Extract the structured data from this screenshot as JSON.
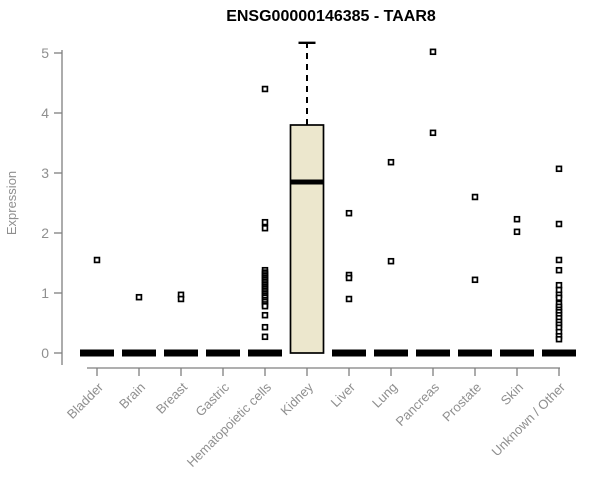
{
  "chart_data": {
    "type": "boxplot",
    "title": "ENSG00000146385 - TAAR8",
    "ylabel": "Expression",
    "xlabel": "",
    "ylim": [
      0,
      5
    ],
    "yticks": [
      0,
      1,
      2,
      3,
      4,
      5
    ],
    "grid": false,
    "legend": null,
    "colors": {
      "axis": "#7f7f7f",
      "tick_text": "#8f8f8f",
      "label_text": "#8f8f8f",
      "box_fill": "#ece7cd",
      "box_stroke": "#000000",
      "point_stroke": "#000000",
      "point_fill": "#ffffff",
      "title": "#000000",
      "background": "#ffffff"
    },
    "categories": [
      {
        "label": "Bladder",
        "box": {
          "q1": 0,
          "median": 0,
          "q3": 0,
          "whisker_low": 0,
          "whisker_high": 0
        },
        "points": [
          1.55
        ]
      },
      {
        "label": "Brain",
        "box": {
          "q1": 0,
          "median": 0,
          "q3": 0,
          "whisker_low": 0,
          "whisker_high": 0
        },
        "points": [
          0.93
        ]
      },
      {
        "label": "Breast",
        "box": {
          "q1": 0,
          "median": 0,
          "q3": 0,
          "whisker_low": 0,
          "whisker_high": 0
        },
        "points": [
          0.97,
          0.9
        ]
      },
      {
        "label": "Gastric",
        "box": {
          "q1": 0,
          "median": 0,
          "q3": 0,
          "whisker_low": 0,
          "whisker_high": 0
        },
        "points": []
      },
      {
        "label": "Hematopoietic cells",
        "box": {
          "q1": 0,
          "median": 0,
          "q3": 0,
          "whisker_low": 0,
          "whisker_high": 0
        },
        "points": [
          4.4,
          2.18,
          2.08,
          1.38,
          1.34,
          1.31,
          1.28,
          1.25,
          1.22,
          1.19,
          1.16,
          1.13,
          1.1,
          1.07,
          1.04,
          1.01,
          0.98,
          0.95,
          0.92,
          0.88,
          0.85,
          0.81,
          0.78,
          0.63,
          0.43,
          0.27
        ]
      },
      {
        "label": "Kidney",
        "box": {
          "q1": 0,
          "median": 2.85,
          "q3": 3.8,
          "whisker_low": 0,
          "whisker_high": 5.17
        },
        "points": []
      },
      {
        "label": "Liver",
        "box": {
          "q1": 0,
          "median": 0,
          "q3": 0,
          "whisker_low": 0,
          "whisker_high": 0
        },
        "points": [
          2.33,
          1.3,
          1.25,
          0.9
        ]
      },
      {
        "label": "Lung",
        "box": {
          "q1": 0,
          "median": 0,
          "q3": 0,
          "whisker_low": 0,
          "whisker_high": 0
        },
        "points": [
          3.18,
          1.53
        ]
      },
      {
        "label": "Pancreas",
        "box": {
          "q1": 0,
          "median": 0,
          "q3": 0,
          "whisker_low": 0,
          "whisker_high": 0
        },
        "points": [
          5.02,
          3.67
        ]
      },
      {
        "label": "Prostate",
        "box": {
          "q1": 0,
          "median": 0,
          "q3": 0,
          "whisker_low": 0,
          "whisker_high": 0
        },
        "points": [
          2.6,
          1.22
        ]
      },
      {
        "label": "Skin",
        "box": {
          "q1": 0,
          "median": 0,
          "q3": 0,
          "whisker_low": 0,
          "whisker_high": 0
        },
        "points": [
          2.23,
          2.02
        ]
      },
      {
        "label": "Unknown / Other",
        "box": {
          "q1": 0,
          "median": 0,
          "q3": 0,
          "whisker_low": 0,
          "whisker_high": 0
        },
        "points": [
          3.07,
          2.15,
          1.55,
          1.38,
          1.13,
          1.05,
          0.97,
          0.92,
          0.82,
          0.77,
          0.72,
          0.68,
          0.63,
          0.58,
          0.52,
          0.47,
          0.42,
          0.35,
          0.28,
          0.23
        ]
      }
    ]
  }
}
